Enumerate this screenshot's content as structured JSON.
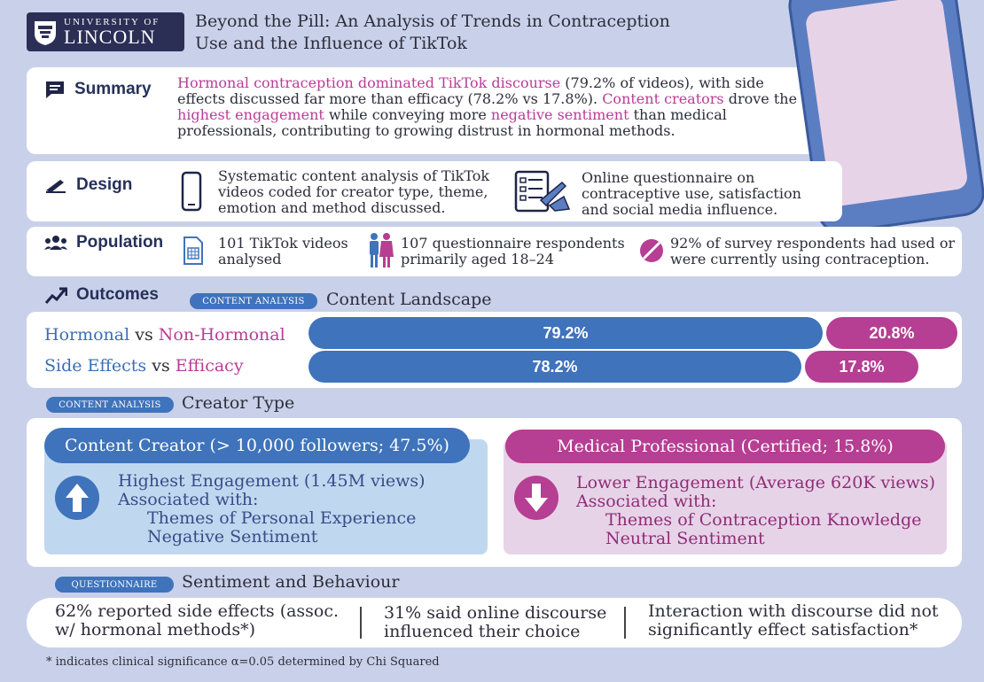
{
  "header": {
    "logo_top": "UNIVERSITY OF",
    "logo_bottom": "LINCOLN",
    "title_line1": "Beyond the Pill: An Analysis of Trends in Contraception",
    "title_line2": "Use and the Influence of TikTok"
  },
  "summary": {
    "label": "Summary",
    "p1": "Hormonal contraception dominated TikTok discourse",
    "p2": " (79.2% of videos), with side effects discussed far more than efficacy (78.2% vs 17.8%). ",
    "p3": "Content creators",
    "p4": " drove the ",
    "p5": "highest engagement",
    "p6": " while conveying more ",
    "p7": "negative sentiment",
    "p8": " than medical professionals, contributing to growing distrust in hormonal methods."
  },
  "design": {
    "label": "Design",
    "item1": "Systematic content analysis of TikTok videos coded for creator type, theme, emotion and method discussed.",
    "item2": "Online questionnaire on contraceptive use, satisfaction and social media influence."
  },
  "population": {
    "label": "Population",
    "item1": "101 TikTok videos analysed",
    "item2": "107 questionnaire respondents primarily aged 18–24",
    "item3": "92% of survey respondents had used or were currently using contraception."
  },
  "outcomes": {
    "label": "Outcomes",
    "tag": "CONTENT ANALYSIS",
    "subtitle": "Content Landscape",
    "rows": [
      {
        "a": "Hormonal",
        "vs": " vs ",
        "b": "Non-Hormonal",
        "blue_value": "79.2%",
        "pink_value": "20.8%"
      },
      {
        "a": "Side Effects",
        "vs": " vs ",
        "b": "Efficacy",
        "blue_value": "78.2%",
        "pink_value": "17.8%"
      }
    ]
  },
  "creator": {
    "tag": "CONTENT ANALYSIS",
    "subtitle": "Creator Type",
    "left_head": "Content Creator (> 10,000 followers; 47.5%)",
    "left_l1": "Highest Engagement (1.45M views)",
    "left_l2": "Associated with:",
    "left_l3": "Themes of Personal Experience",
    "left_l4": "Negative Sentiment",
    "right_head": "Medical Professional (Certified; 15.8%)",
    "right_l1": "Lower Engagement (Average 620K views)",
    "right_l2": "Associated with:",
    "right_l3": "Themes of Contraception Knowledge",
    "right_l4": "Neutral Sentiment"
  },
  "questionnaire": {
    "tag": "QUESTIONNAIRE",
    "subtitle": "Sentiment and Behaviour",
    "item1": "62% reported side effects (assoc. w/ hormonal methods*)",
    "item2": "31% said online discourse influenced their choice",
    "item3": "Interaction with discourse did not significantly effect satisfaction*"
  },
  "footnote": "* indicates clinical significance α=0.05 determined by Chi Squared",
  "colors": {
    "blue": "#3f73bb",
    "pink": "#b63e93",
    "background": "#c9d1ea",
    "navy": "#2b2f56"
  },
  "icons": [
    "crest-icon",
    "chat-icon",
    "pen-icon",
    "people-icon",
    "trend-icon",
    "phone-icon",
    "checklist-icon",
    "document-icon",
    "couple-icon",
    "pill-icon",
    "arrow-up-icon",
    "arrow-down-icon"
  ]
}
